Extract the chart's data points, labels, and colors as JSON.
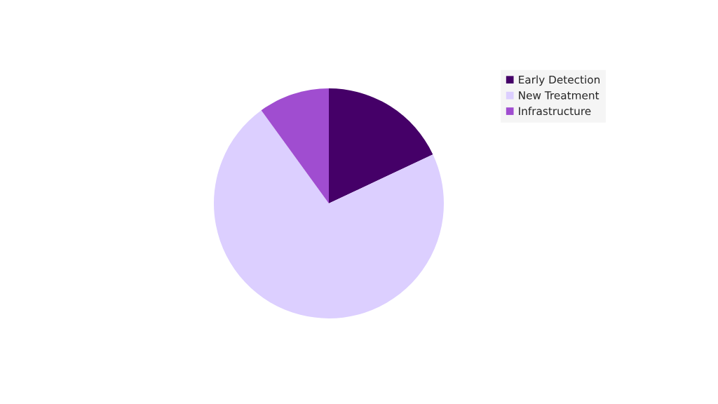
{
  "chart_data": {
    "type": "pie",
    "categories": [
      "Early Detection",
      "New Treatment",
      "Infrastructure"
    ],
    "values": [
      18,
      72,
      10
    ],
    "colors": [
      "#450068",
      "#dccfff",
      "#a04dd0"
    ],
    "legend": "top right"
  }
}
